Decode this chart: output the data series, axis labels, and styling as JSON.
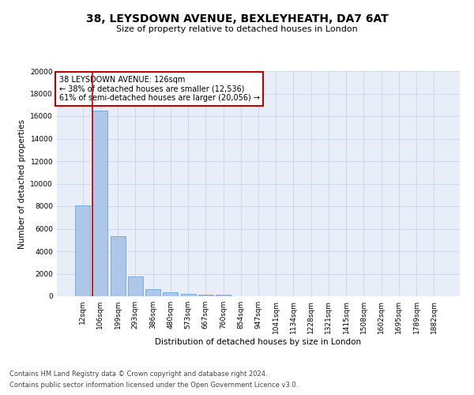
{
  "title": "38, LEYSDOWN AVENUE, BEXLEYHEATH, DA7 6AT",
  "subtitle": "Size of property relative to detached houses in London",
  "xlabel": "Distribution of detached houses by size in London",
  "ylabel": "Number of detached properties",
  "categories": [
    "12sqm",
    "106sqm",
    "199sqm",
    "293sqm",
    "386sqm",
    "480sqm",
    "573sqm",
    "667sqm",
    "760sqm",
    "854sqm",
    "947sqm",
    "1041sqm",
    "1134sqm",
    "1228sqm",
    "1321sqm",
    "1415sqm",
    "1508sqm",
    "1602sqm",
    "1695sqm",
    "1789sqm",
    "1882sqm"
  ],
  "values": [
    8050,
    16500,
    5300,
    1750,
    650,
    330,
    200,
    150,
    130,
    0,
    0,
    0,
    0,
    0,
    0,
    0,
    0,
    0,
    0,
    0,
    0
  ],
  "bar_color": "#aec6e8",
  "bar_edge_color": "#5b9bd5",
  "highlight_line_color": "#c00000",
  "property_line_x": 1,
  "ylim": [
    0,
    20000
  ],
  "yticks": [
    0,
    2000,
    4000,
    6000,
    8000,
    10000,
    12000,
    14000,
    16000,
    18000,
    20000
  ],
  "annotation_text_line1": "38 LEYSDOWN AVENUE: 126sqm",
  "annotation_text_line2": "← 38% of detached houses are smaller (12,536)",
  "annotation_text_line3": "61% of semi-detached houses are larger (20,056) →",
  "annotation_box_color": "#ffffff",
  "annotation_box_edge_color": "#c00000",
  "footer_line1": "Contains HM Land Registry data © Crown copyright and database right 2024.",
  "footer_line2": "Contains public sector information licensed under the Open Government Licence v3.0.",
  "background_color": "#ffffff",
  "plot_bg_color": "#e8eef8",
  "grid_color": "#c8d4e8",
  "title_fontsize": 10,
  "subtitle_fontsize": 8,
  "axis_label_fontsize": 7.5,
  "tick_fontsize": 6.5,
  "annotation_fontsize": 7,
  "footer_fontsize": 6
}
